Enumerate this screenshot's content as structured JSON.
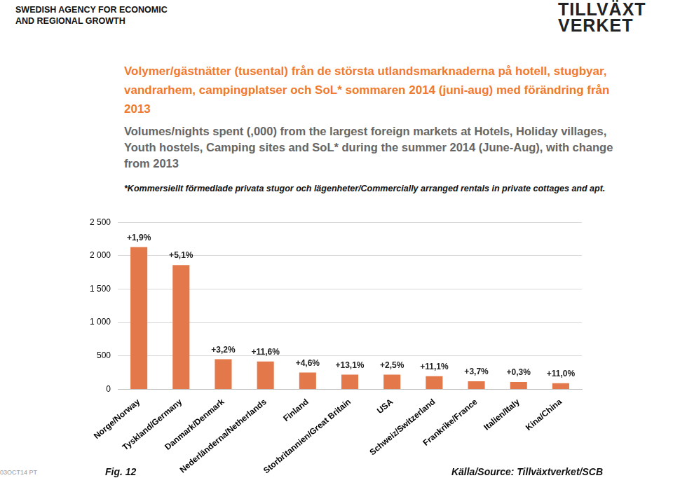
{
  "chart_data": {
    "type": "bar",
    "header": [
      "SWEDISH AGENCY FOR ECONOMIC",
      "AND REGIONAL GROWTH"
    ],
    "logo": [
      "TILLVÄXT",
      "VERKET"
    ],
    "title": "Volymer/gästnätter (tusental) från de största utlandsmarknaderna på hotell, stugbyar, vandrarhem, campingplatser och SoL* sommaren 2014 (juni-aug) med förändring från 2013",
    "subtitle": "Volumes/nights spent (,000) from the largest foreign markets at Hotels, Holiday villages, Youth hostels, Camping sites and SoL* during the summer 2014 (June-Aug), with change from 2013",
    "footnote": "*Kommersiellt förmedlade privata stugor och lägenheter/Commercially arranged rentals in private cottages and apt.",
    "figure_label": "Fig. 12",
    "source": "Källa/Source: Tillväxtverket/SCB",
    "date_stamp": "03OCT14 PT",
    "categories": [
      "Norge/Norway",
      "Tyskland/Germany",
      "Danmark/Denmark",
      "Nederländerna/Netherlands",
      "Finland",
      "Storbritannien/Great Britain",
      "USA",
      "Schweiz/Switzerland",
      "Frankrike/France",
      "Italien/Italy",
      "Kina/China"
    ],
    "values": [
      2130,
      1860,
      450,
      415,
      250,
      220,
      220,
      195,
      120,
      110,
      90
    ],
    "annotations": [
      "+1,9%",
      "+5,1%",
      "+3,2%",
      "+11,6%",
      "+4,6%",
      "+13,1%",
      "+2,5%",
      "+11,1%",
      "+3,7%",
      "+0,3%",
      "+11,0%"
    ],
    "color": "#e3784b",
    "ylim": [
      0,
      2500
    ],
    "yticks": [
      0,
      500,
      {
        "value": 1000,
        "label": "1 000"
      },
      {
        "value": 1500,
        "label": "1 500"
      },
      {
        "value": 2000,
        "label": "2 000"
      },
      {
        "value": 2500,
        "label": "2 500"
      }
    ],
    "grid": true
  }
}
